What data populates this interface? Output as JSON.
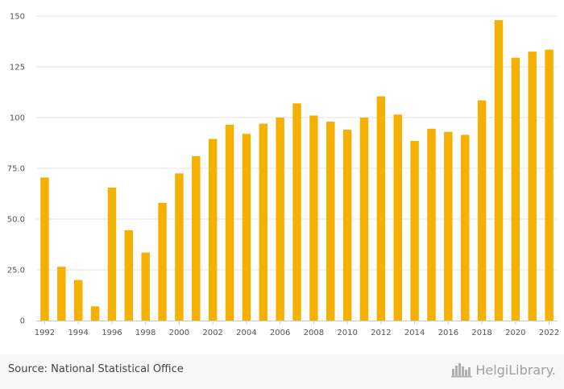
{
  "chart_data": {
    "type": "bar",
    "categories": [
      "1992",
      "1993",
      "1994",
      "1995",
      "1996",
      "1997",
      "1998",
      "1999",
      "2000",
      "2001",
      "2002",
      "2003",
      "2004",
      "2005",
      "2006",
      "2007",
      "2008",
      "2009",
      "2010",
      "2011",
      "2012",
      "2013",
      "2014",
      "2015",
      "2016",
      "2017",
      "2018",
      "2019",
      "2020",
      "2021",
      "2022"
    ],
    "values": [
      70.5,
      26.5,
      20,
      7,
      65.5,
      44.5,
      33.5,
      58,
      72.5,
      81,
      89.5,
      96.5,
      92,
      97,
      100,
      107,
      101,
      98,
      94,
      100,
      110.5,
      101.5,
      88.5,
      94.5,
      93,
      91.5,
      108.5,
      148,
      129.5,
      132.5,
      133.5
    ],
    "x_tick_labels": [
      "1992",
      "1994",
      "1996",
      "1998",
      "2000",
      "2002",
      "2004",
      "2006",
      "2008",
      "2010",
      "2012",
      "2014",
      "2016",
      "2018",
      "2020",
      "2022"
    ],
    "y_tick_labels": [
      "0",
      "25.0",
      "50.0",
      "75.0",
      "100",
      "125",
      "150"
    ],
    "y_ticks": [
      0,
      25,
      50,
      75,
      100,
      125,
      150
    ],
    "ylim": [
      0,
      150
    ],
    "title": "",
    "xlabel": "",
    "ylabel": "",
    "bar_color": "#f5b000",
    "grid": true
  },
  "footer": {
    "source": "Source: National Statistical Office",
    "brand": "HelgiLibrary."
  },
  "icons": {
    "brand_logo": "city-skyline-icon"
  }
}
